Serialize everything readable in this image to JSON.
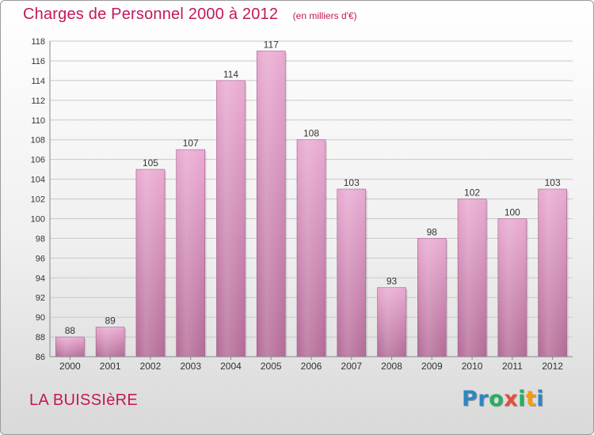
{
  "header": {
    "title": "Charges de Personnel 2000 à 2012",
    "subtitle": "(en milliers d'€)"
  },
  "footer": {
    "commune": "LA BUISSIèRE",
    "brand_letters": [
      "P",
      "r",
      "o",
      "x",
      "i",
      "t",
      "i"
    ],
    "brand_colors": [
      "#2e86c1",
      "#2e86c1",
      "#27ae60",
      "#e74c3c",
      "#27ae60",
      "#f39c12",
      "#2e86c1"
    ]
  },
  "colors": {
    "bar_light": "#e9a9d1",
    "bar_dark": "#b36a96",
    "grid": "#c8c8c8",
    "axis": "#888888",
    "text": "#333333",
    "accent": "#c2185b"
  },
  "chart_data": {
    "type": "bar",
    "title": "Charges de Personnel 2000 à 2012",
    "subtitle": "(en milliers d'€)",
    "xlabel": "",
    "ylabel": "",
    "categories": [
      "2000",
      "2001",
      "2002",
      "2003",
      "2004",
      "2005",
      "2006",
      "2007",
      "2008",
      "2009",
      "2010",
      "2011",
      "2012"
    ],
    "values": [
      88,
      89,
      105,
      107,
      114,
      117,
      108,
      103,
      93,
      98,
      102,
      100,
      103
    ],
    "ylim": [
      86,
      118
    ],
    "yticks": [
      86,
      88,
      90,
      92,
      94,
      96,
      98,
      100,
      102,
      104,
      106,
      108,
      110,
      112,
      114,
      116,
      118
    ],
    "grid": true,
    "data_labels": true,
    "legend": "none"
  }
}
